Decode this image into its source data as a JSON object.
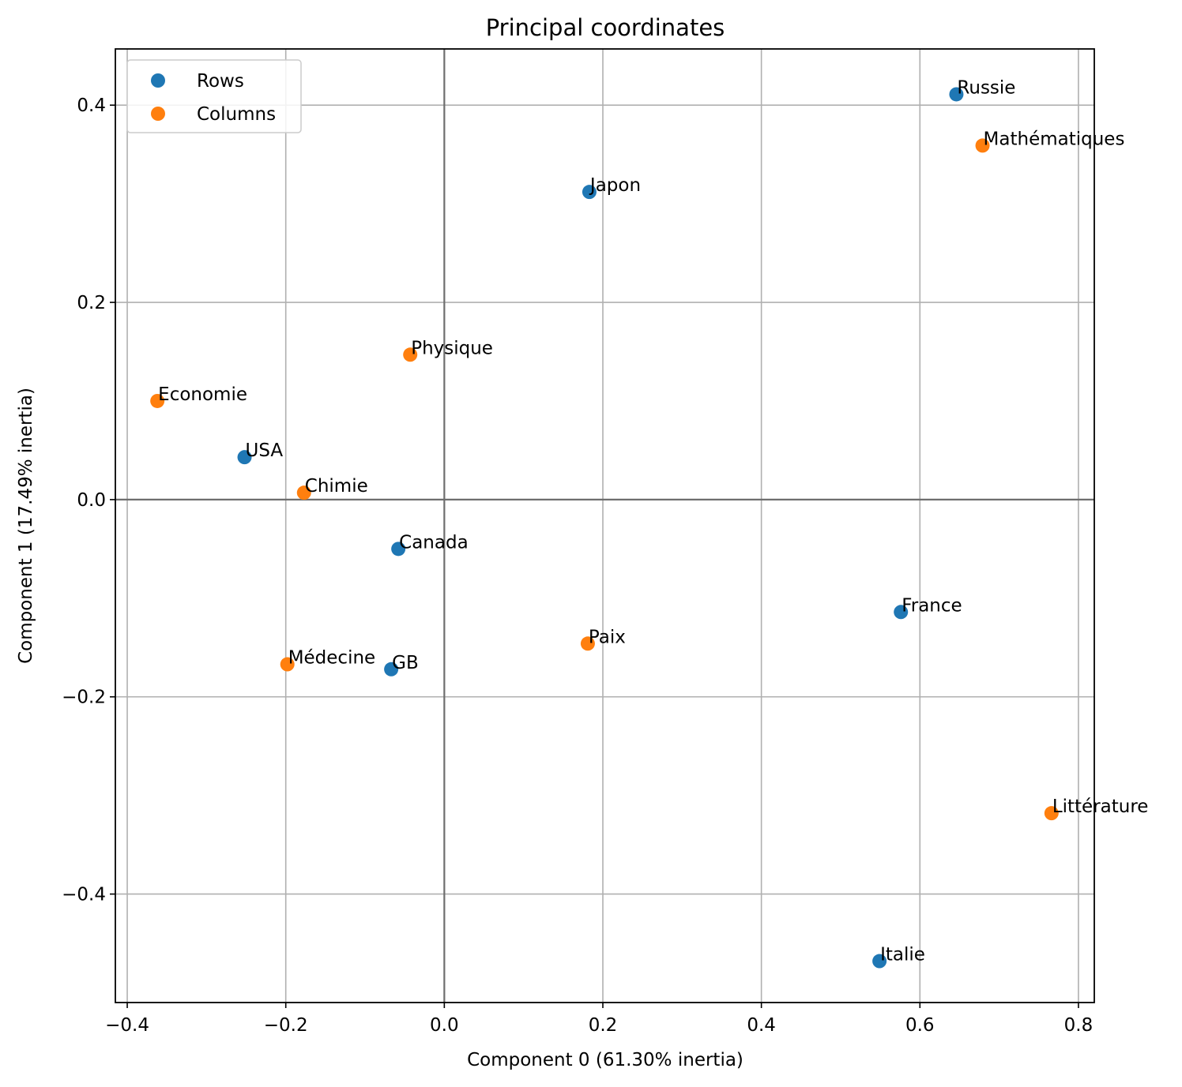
{
  "chart_data": {
    "type": "scatter",
    "title": "Principal coordinates",
    "xlabel": "Component 0 (61.30% inertia)",
    "ylabel": "Component 1 (17.49% inertia)",
    "xlim": [
      -0.415,
      0.82
    ],
    "ylim": [
      -0.51,
      0.457
    ],
    "xticks": [
      -0.4,
      -0.2,
      0.0,
      0.2,
      0.4,
      0.6,
      0.8
    ],
    "xtick_labels": [
      "−0.4",
      "−0.2",
      "0.0",
      "0.2",
      "0.4",
      "0.6",
      "0.8"
    ],
    "yticks": [
      -0.4,
      -0.2,
      0.0,
      0.2,
      0.4
    ],
    "ytick_labels": [
      "−0.4",
      "−0.2",
      "0.0",
      "0.2",
      "0.4"
    ],
    "grid": true,
    "legend_position": "top-left",
    "series": [
      {
        "name": "Rows",
        "color": "#1f77b4",
        "points": [
          {
            "label": "Russie",
            "x": 0.646,
            "y": 0.411
          },
          {
            "label": "Japon",
            "x": 0.183,
            "y": 0.312
          },
          {
            "label": "USA",
            "x": -0.252,
            "y": 0.043
          },
          {
            "label": "Canada",
            "x": -0.058,
            "y": -0.05
          },
          {
            "label": "France",
            "x": 0.576,
            "y": -0.114
          },
          {
            "label": "GB",
            "x": -0.067,
            "y": -0.172
          },
          {
            "label": "Italie",
            "x": 0.549,
            "y": -0.468
          }
        ]
      },
      {
        "name": "Columns",
        "color": "#ff7f0e",
        "points": [
          {
            "label": "Mathématiques",
            "x": 0.679,
            "y": 0.359
          },
          {
            "label": "Physique",
            "x": -0.043,
            "y": 0.147
          },
          {
            "label": "Economie",
            "x": -0.362,
            "y": 0.1
          },
          {
            "label": "Chimie",
            "x": -0.177,
            "y": 0.007
          },
          {
            "label": "Paix",
            "x": 0.181,
            "y": -0.146
          },
          {
            "label": "Médecine",
            "x": -0.198,
            "y": -0.167
          },
          {
            "label": "Littérature",
            "x": 0.766,
            "y": -0.318
          }
        ]
      }
    ]
  }
}
